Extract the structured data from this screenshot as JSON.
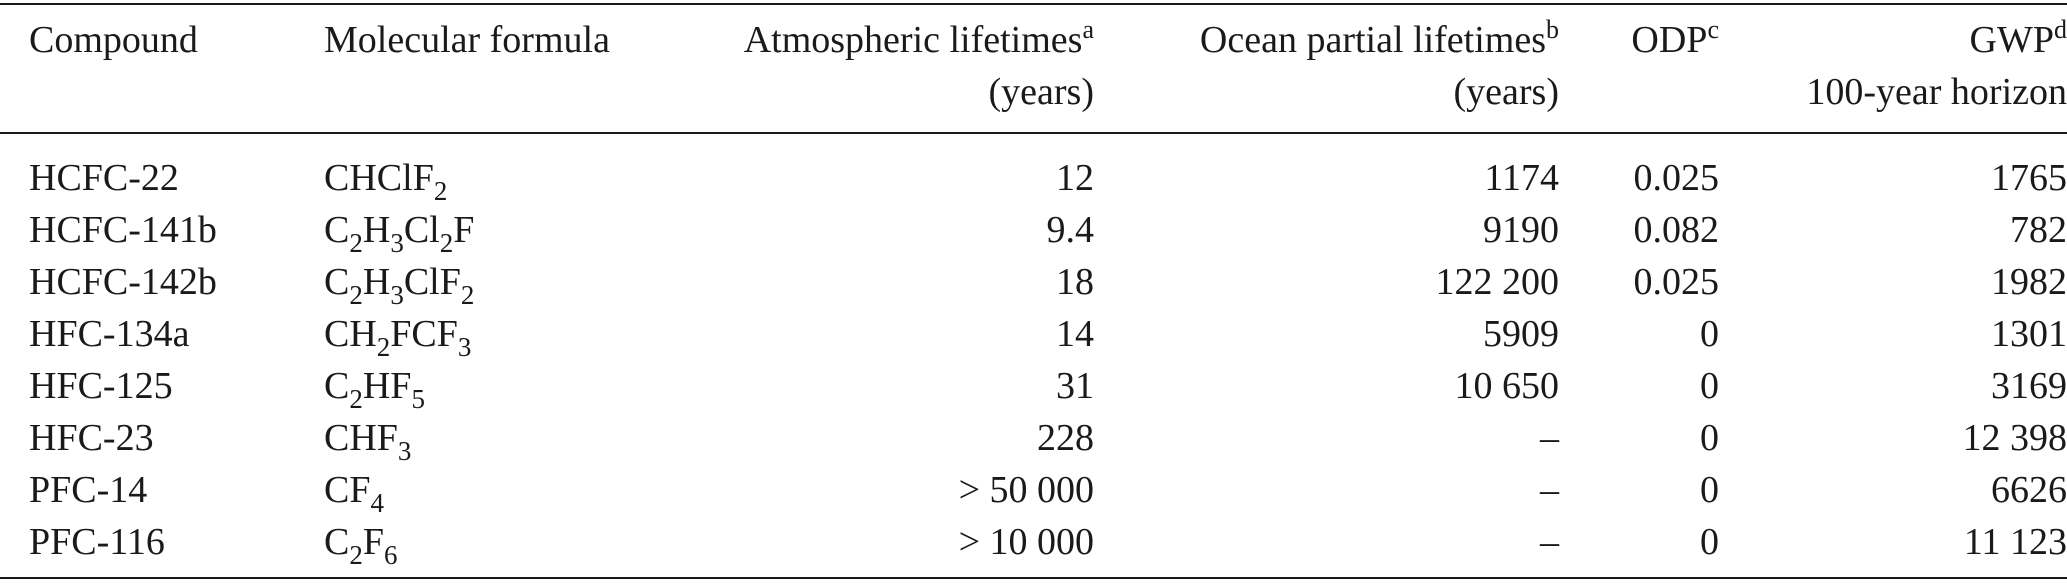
{
  "headers": {
    "compound": "Compound",
    "formula": "Molecular formula",
    "atmos": {
      "label": "Atmospheric lifetimes",
      "note": "a",
      "unit": "(years)"
    },
    "ocean": {
      "label": "Ocean partial lifetimes",
      "note": "b",
      "unit": "(years)"
    },
    "odp": {
      "label": "ODP",
      "note": "c"
    },
    "gwp": {
      "label": "GWP",
      "note": "d",
      "sub": "100-year horizon"
    }
  },
  "rows": [
    {
      "compound": "HCFC-22",
      "formula": [
        [
          "CHClF",
          "2"
        ]
      ],
      "atmos": "12",
      "ocean": "1174",
      "odp": "0.025",
      "gwp": "1765"
    },
    {
      "compound": "HCFC-141b",
      "formula": [
        [
          "C",
          "2"
        ],
        [
          "H",
          "3"
        ],
        [
          "Cl",
          "2"
        ],
        [
          "F",
          ""
        ]
      ],
      "atmos": "9.4",
      "ocean": "9190",
      "odp": "0.082",
      "gwp": "782"
    },
    {
      "compound": "HCFC-142b",
      "formula": [
        [
          "C",
          "2"
        ],
        [
          "H",
          "3"
        ],
        [
          "ClF",
          "2"
        ]
      ],
      "atmos": "18",
      "ocean": "122 200",
      "odp": "0.025",
      "gwp": "1982"
    },
    {
      "compound": "HFC-134a",
      "formula": [
        [
          "CH",
          "2"
        ],
        [
          "FCF",
          "3"
        ]
      ],
      "atmos": "14",
      "ocean": "5909",
      "odp": "0",
      "gwp": "1301"
    },
    {
      "compound": "HFC-125",
      "formula": [
        [
          "C",
          "2"
        ],
        [
          "HF",
          "5"
        ]
      ],
      "atmos": "31",
      "ocean": "10 650",
      "odp": "0",
      "gwp": "3169"
    },
    {
      "compound": "HFC-23",
      "formula": [
        [
          "CHF",
          "3"
        ]
      ],
      "atmos": "228",
      "ocean": "–",
      "odp": "0",
      "gwp": "12 398"
    },
    {
      "compound": "PFC-14",
      "formula": [
        [
          "CF",
          "4"
        ]
      ],
      "atmos": "> 50 000",
      "ocean": "–",
      "odp": "0",
      "gwp": "6626"
    },
    {
      "compound": "PFC-116",
      "formula": [
        [
          "C",
          "2"
        ],
        [
          "F",
          "6"
        ]
      ],
      "atmos": "> 10 000",
      "ocean": "–",
      "odp": "0",
      "gwp": "11 123"
    }
  ]
}
